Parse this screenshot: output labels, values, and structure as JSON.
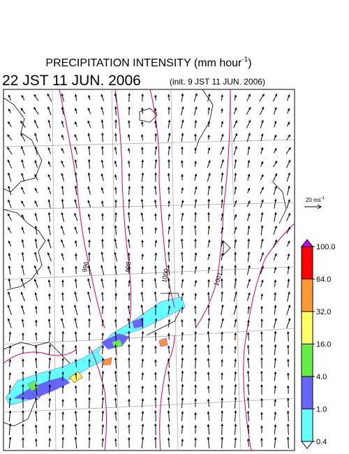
{
  "header": {
    "title": "PRECIPITATION INTENSITY (mm hour",
    "title_sup": "-1",
    "title_end": ")",
    "time": "22 JST 11 JUN. 2006",
    "init": "(init. 9 JST 11 JUN. 2006)"
  },
  "wind_scale": {
    "label": "20 ms",
    "label_sup": "-1"
  },
  "contours": {
    "labels": [
      "996",
      "998",
      "1000",
      "1001"
    ]
  },
  "colorbar": {
    "levels": [
      0.4,
      {
        "value": 1,
        "label": "1.0"
      },
      {
        "value": 4,
        "label": "4.0"
      },
      {
        "value": 16,
        "label": "16.0"
      },
      {
        "value": 32,
        "label": "32.0"
      },
      {
        "value": 64,
        "label": "64.0"
      },
      {
        "value": 100,
        "label": "100.0"
      }
    ],
    "colors": [
      "#ffffff",
      "#66ffff",
      "#6666ff",
      "#66ee44",
      "#ffff66",
      "#ff9933",
      "#ff0000",
      "#cc00ff"
    ]
  }
}
